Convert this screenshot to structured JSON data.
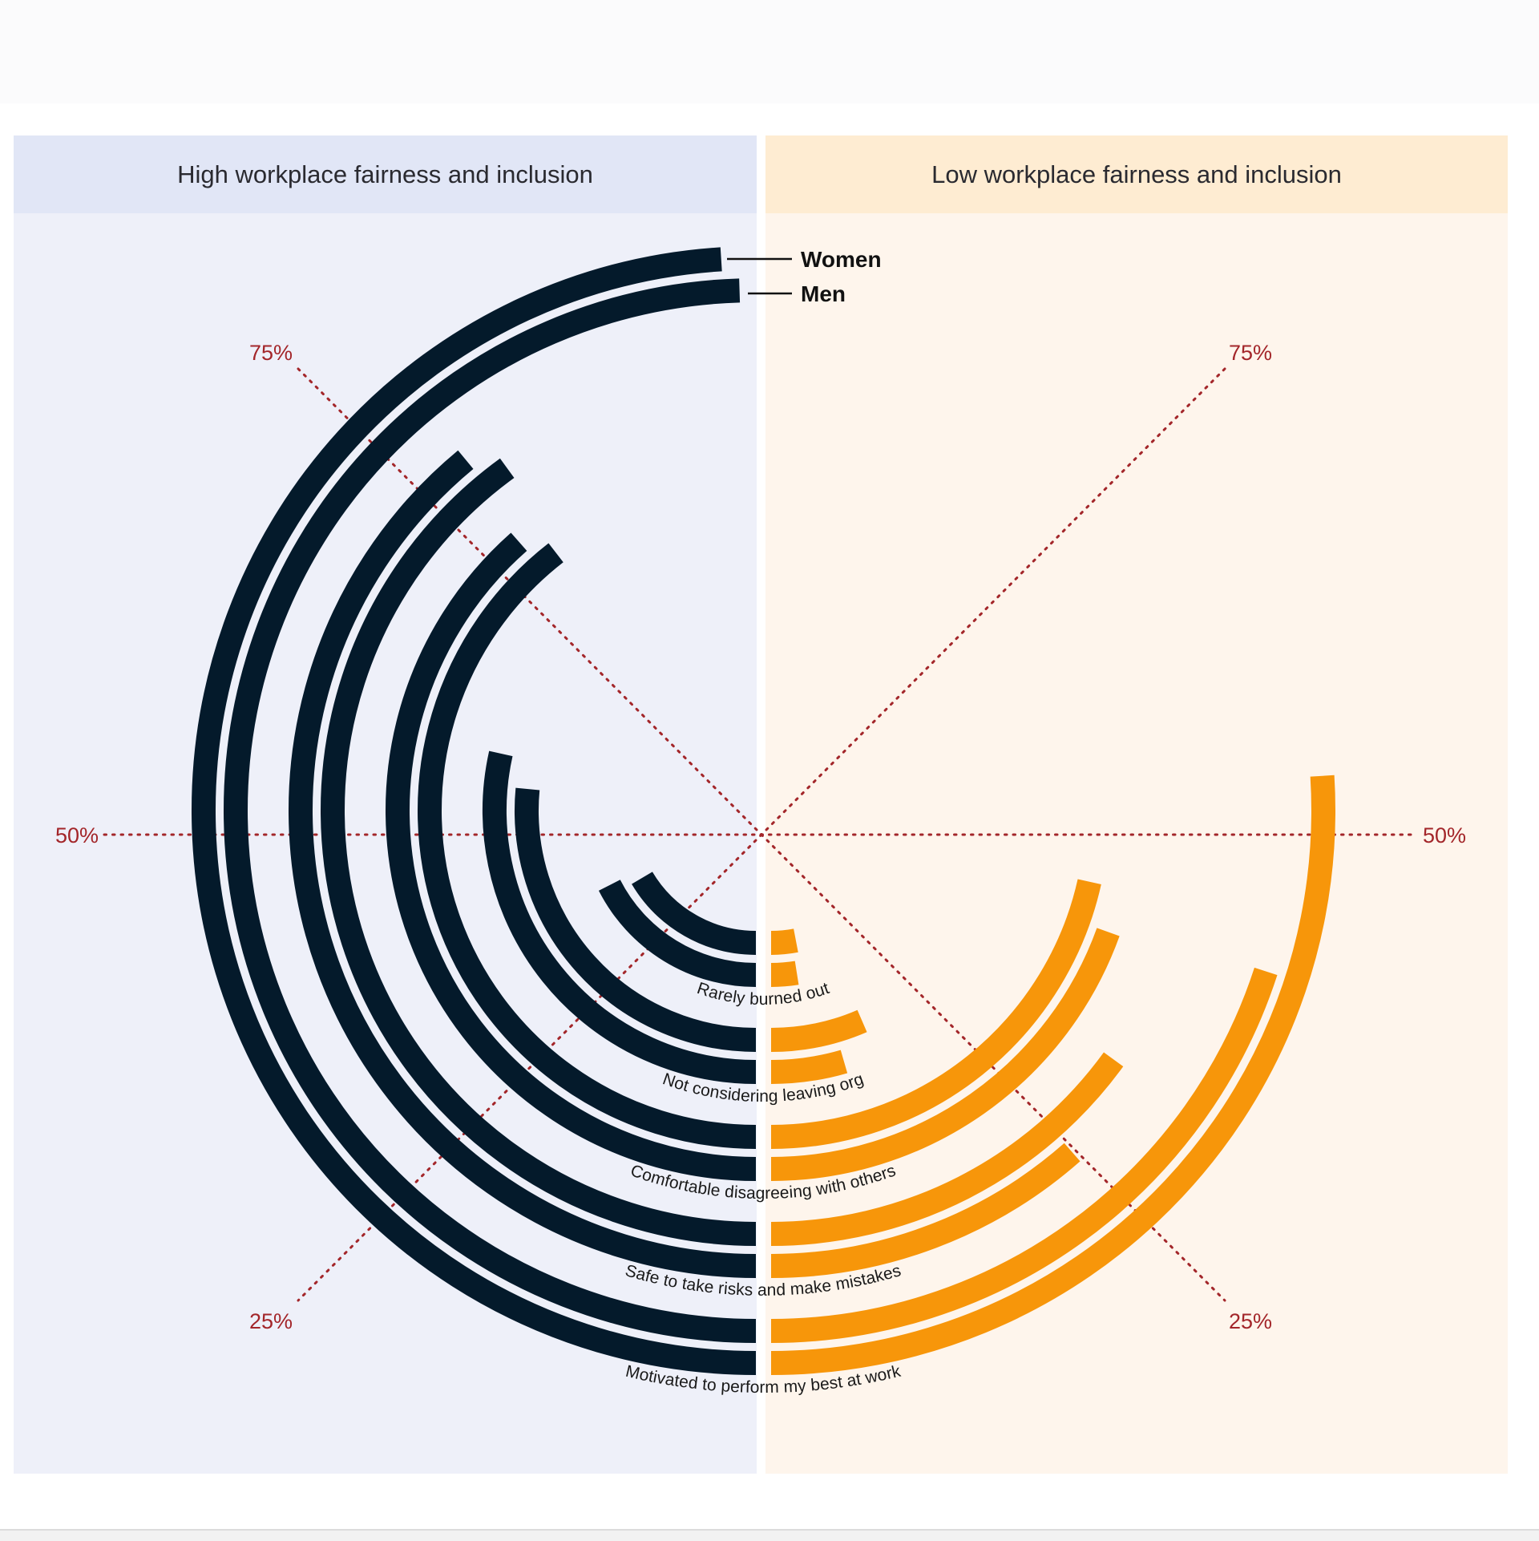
{
  "panels": {
    "left_title": "High workplace fairness and inclusion",
    "right_title": "Low workplace fairness and inclusion"
  },
  "colors": {
    "women_men_high": "#041a2b",
    "women_men_low": "#f7960a",
    "gridline": "#a3262a",
    "label_text": "#1a1a1a"
  },
  "chart_data": {
    "type": "radial-bar",
    "title": "",
    "panels": [
      "High workplace fairness and inclusion",
      "Low workplace fairness and inclusion"
    ],
    "legend": {
      "entries": [
        "Women",
        "Men"
      ],
      "placement": "top-center"
    },
    "axis": {
      "unit": "%",
      "range": [
        0,
        100
      ],
      "gridlines": [
        25,
        50,
        75
      ],
      "tick_labels": [
        "25%",
        "50%",
        "75%"
      ]
    },
    "categories": [
      "Motivated to perform my best at work",
      "Safe to take risks and make mistakes",
      "Comfortable disagreeing with others",
      "Not considering leaving org",
      "Rarely burned out"
    ],
    "series": [
      {
        "panel": "High workplace fairness and inclusion",
        "name": "Women",
        "values": [
          98,
          78,
          77,
          57,
          35
        ]
      },
      {
        "panel": "High workplace fairness and inclusion",
        "name": "Men",
        "values": [
          99,
          80,
          79,
          53,
          33
        ]
      },
      {
        "panel": "Low workplace fairness and inclusion",
        "name": "Women",
        "values": [
          52,
          23,
          39,
          9,
          5
        ]
      },
      {
        "panel": "Low workplace fairness and inclusion",
        "name": "Men",
        "values": [
          40,
          30,
          43,
          13,
          6
        ]
      }
    ]
  }
}
